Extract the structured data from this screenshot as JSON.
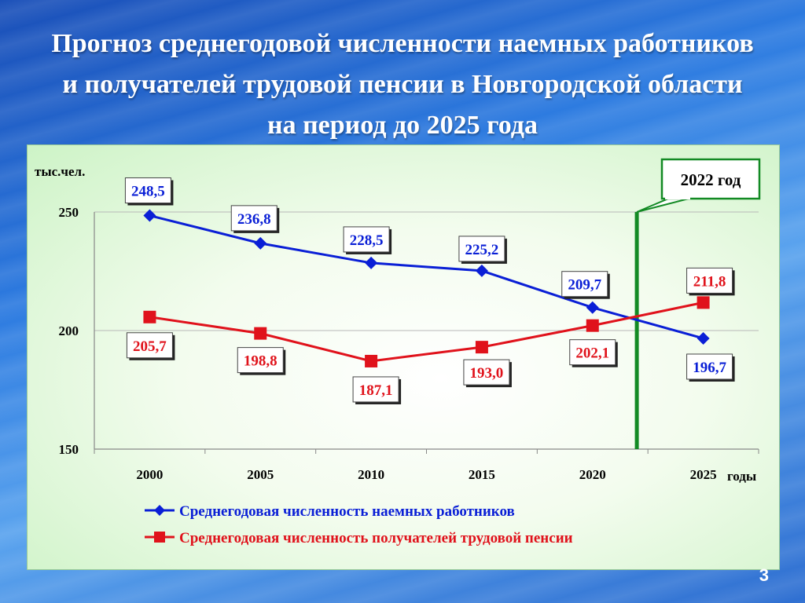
{
  "title": "Прогноз среднегодовой численности наемных работников и получателей трудовой пенсии в Новгородской области на период до 2025 года",
  "page_number": "3",
  "colors": {
    "series_workers": "#0a1fd6",
    "series_pensioners": "#e0121b",
    "marker_line": "#138a24"
  },
  "chart_data": {
    "type": "line",
    "ylabel": "тыс.чел.",
    "xlabel": "годы",
    "ylim": [
      150,
      250
    ],
    "yticks": [
      "150",
      "200",
      "250"
    ],
    "categories": [
      "2000",
      "2005",
      "2010",
      "2015",
      "2020",
      "2025"
    ],
    "grid": true,
    "legend_position": "bottom",
    "series": [
      {
        "name": "Среднегодовая численность наемных работников",
        "marker": "diamond",
        "values": [
          248.5,
          236.8,
          228.5,
          225.2,
          209.7,
          196.7
        ],
        "labels": [
          "248,5",
          "236,8",
          "228,5",
          "225,2",
          "209,7",
          "196,7"
        ]
      },
      {
        "name": "Среднегодовая численность получателей трудовой пенсии",
        "marker": "square",
        "values": [
          205.7,
          198.8,
          187.1,
          193.0,
          202.1,
          211.8
        ],
        "labels": [
          "205,7",
          "198,8",
          "187,1",
          "193,0",
          "202,1",
          "211,8"
        ]
      }
    ],
    "annotation": {
      "text": "2022 год",
      "x": 2022
    }
  }
}
